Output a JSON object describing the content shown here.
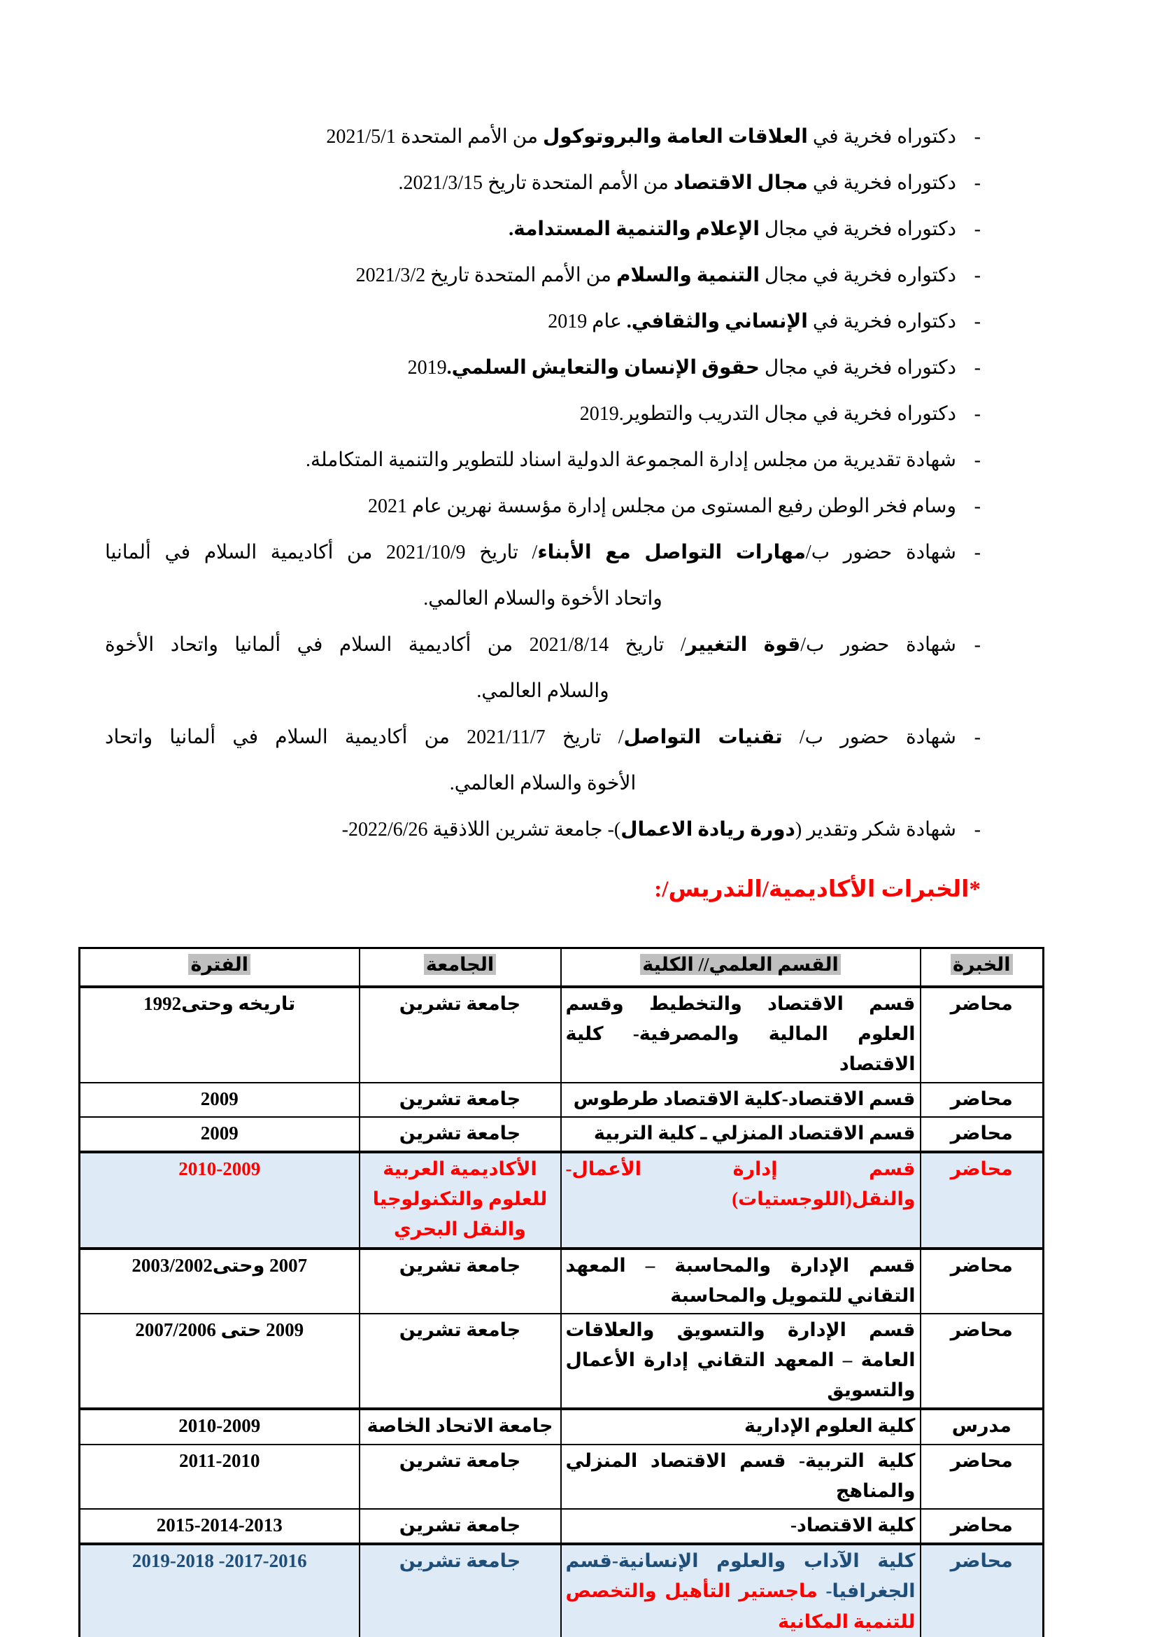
{
  "colors": {
    "red": "#FF0000",
    "dark_blue": "#1F4E79",
    "row_highlight_bg": "#DEEAF6",
    "header_highlight_bg": "#BFBFBF",
    "text": "#000000"
  },
  "bullets": [
    {
      "runs": [
        {
          "t": "دكتوراه فخرية في ",
          "b": false
        },
        {
          "t": "العلاقات العامة والبروتوكول",
          "b": true
        },
        {
          "t": " من الأمم المتحدة 2021/5/1",
          "b": false
        }
      ]
    },
    {
      "runs": [
        {
          "t": "دكتوراه فخرية في ",
          "b": false
        },
        {
          "t": "مجال الاقتصاد",
          "b": true
        },
        {
          "t": " من الأمم المتحدة تاريخ 2021/3/15.",
          "b": false
        }
      ]
    },
    {
      "runs": [
        {
          "t": "دكتوراه فخرية في مجال ",
          "b": false
        },
        {
          "t": "الإعلام والتنمية المستدامة.",
          "b": true
        }
      ]
    },
    {
      "runs": [
        {
          "t": "دكتواره فخرية في مجال ",
          "b": false
        },
        {
          "t": "التنمية والسلام",
          "b": true
        },
        {
          "t": " من الأمم المتحدة تاريخ 2021/3/2",
          "b": false
        }
      ]
    },
    {
      "runs": [
        {
          "t": "دكتواره فخرية في ",
          "b": false
        },
        {
          "t": "الإنساني والثقافي.",
          "b": true
        },
        {
          "t": " عام 2019",
          "b": false
        }
      ]
    },
    {
      "runs": [
        {
          "t": "دكتوراه فخرية في مجال ",
          "b": false
        },
        {
          "t": "حقوق الإنسان والتعايش السلمي.",
          "b": true
        },
        {
          "t": "2019",
          "b": false
        }
      ]
    },
    {
      "runs": [
        {
          "t": "دكتوراه فخرية في مجال التدريب والتطوير.2019",
          "b": false
        }
      ]
    },
    {
      "runs": [
        {
          "t": "شهادة تقديرية من مجلس إدارة المجموعة الدولية اسناد للتطوير والتنمية المتكاملة.",
          "b": false
        }
      ]
    },
    {
      "runs": [
        {
          "t": "وسام فخر الوطن رفيع المستوى من مجلس إدارة مؤسسة نهرين عام 2021",
          "b": false
        }
      ]
    },
    {
      "runs": [
        {
          "t": "شهادة حضور ب/",
          "b": false
        },
        {
          "t": "مهارات التواصل مع الأبناء",
          "b": true
        },
        {
          "t": "/ تاريخ 2021/10/9 من أكاديمية السلام في ألمانيا",
          "b": false
        }
      ],
      "line2": "واتحاد الأخوة والسلام العالمي."
    },
    {
      "runs": [
        {
          "t": "شهادة حضور ب/",
          "b": false
        },
        {
          "t": "قوة التغيير",
          "b": true
        },
        {
          "t": "/ تاريخ 2021/8/14 من أكاديمية السلام في ألمانيا واتحاد الأخوة",
          "b": false
        }
      ],
      "line2": "والسلام العالمي."
    },
    {
      "runs": [
        {
          "t": "شهادة حضور ب/ ",
          "b": false
        },
        {
          "t": "تقنيات التواصل",
          "b": true
        },
        {
          "t": "/ تاريخ 2021/11/7 من أكاديمية السلام في ألمانيا واتحاد",
          "b": false
        }
      ],
      "line2": "الأخوة والسلام العالمي."
    },
    {
      "runs": [
        {
          "t": "شهادة شكر وتقدير (",
          "b": false
        },
        {
          "t": "دورة ريادة الاعمال",
          "b": true
        },
        {
          "t": ")- جامعة تشرين اللاذقية ⁦-2022/6/26⁩",
          "b": false
        }
      ]
    }
  ],
  "section_heading": "*الخبرات الأكاديمية/التدريس/:",
  "table": {
    "headers": [
      "الخبرة",
      "القسم العلمي// الكلية",
      "الجامعة",
      "الفترة"
    ],
    "rows": [
      {
        "experience": "محاضر",
        "department": [
          {
            "t": "قسم الاقتصاد والتخطيط وقسم العلوم المالية والمصرفية- كلية الاقتصاد",
            "c": null
          }
        ],
        "university": "جامعة تشرين",
        "period": "⁦1992⁧وحتى⁩ ⁧تاريخه⁩⁩",
        "bg": false,
        "fg": null,
        "thick_top": false
      },
      {
        "experience": "محاضر",
        "department": [
          {
            "t": "قسم الاقتصاد-كلية الاقتصاد طرطوس",
            "c": null
          }
        ],
        "university": "جامعة تشرين",
        "period": "2009",
        "bg": false,
        "fg": null,
        "thick_top": false
      },
      {
        "experience": "محاضر",
        "department": [
          {
            "t": "قسم الاقتصاد المنزلي ـ كلية التربية",
            "c": null
          }
        ],
        "university": "جامعة تشرين",
        "period": "2009",
        "bg": false,
        "fg": null,
        "thick_top": false
      },
      {
        "experience": "محاضر",
        "department": [
          {
            "t": "قسم إدارة الأعمال- والنقل(اللوجستيات)",
            "c": null
          }
        ],
        "university": "الأكاديمية العربية للعلوم والتكنولوجيا والنقل البحري",
        "period": "2010-2009",
        "bg": true,
        "fg": "#FF0000",
        "thick_top": true
      },
      {
        "experience": "محاضر",
        "department": [
          {
            "t": "قسم الإدارة والمحاسبة – المعهد التقاني للتمويل والمحاسبة",
            "c": null
          }
        ],
        "university": "جامعة تشرين",
        "period": "⁦2003/2002⁧وحتى⁩ 2007⁩",
        "bg": false,
        "fg": null,
        "thick_top": true
      },
      {
        "experience": "محاضر",
        "department": [
          {
            "t": "قسم الإدارة والتسويق والعلاقات العامة – المعهد التقاني إدارة الأعمال والتسويق",
            "c": null
          }
        ],
        "university": "جامعة تشرين",
        "period": "⁦2007/2006 ⁧حتى⁩ 2009⁩",
        "bg": false,
        "fg": null,
        "thick_top": false
      },
      {
        "experience": "مدرس",
        "department": [
          {
            "t": "كلية العلوم الإدارية",
            "c": null
          }
        ],
        "university": "جامعة الاتحاد الخاصة",
        "period": "2010-2009",
        "bg": false,
        "fg": null,
        "thick_top": true
      },
      {
        "experience": "محاضر",
        "department": [
          {
            "t": "كلية التربية- قسم الاقتصاد المنزلي والمناهج",
            "c": null
          }
        ],
        "university": "جامعة تشرين",
        "period": "2011-2010",
        "bg": false,
        "fg": null,
        "thick_top": false
      },
      {
        "experience": "محاضر",
        "department": [
          {
            "t": "كلية الاقتصاد-",
            "c": null
          }
        ],
        "university": "جامعة تشرين",
        "period": "2015-2014-2013",
        "bg": false,
        "fg": null,
        "thick_top": false
      },
      {
        "experience": "محاضر",
        "department": [
          {
            "t": "كلية الآداب والعلوم الإنسانية-قسم الجغرافيا- ",
            "c": "#1F4E79"
          },
          {
            "t": "ماجستير التأهيل والتخصص للتنمية المكانية",
            "c": "#FF0000"
          }
        ],
        "university": "جامعة تشرين",
        "period": "⁦2019-2018 -2017-2016⁩",
        "bg": true,
        "fg": "#1F4E79",
        "thick_top": true
      }
    ]
  }
}
